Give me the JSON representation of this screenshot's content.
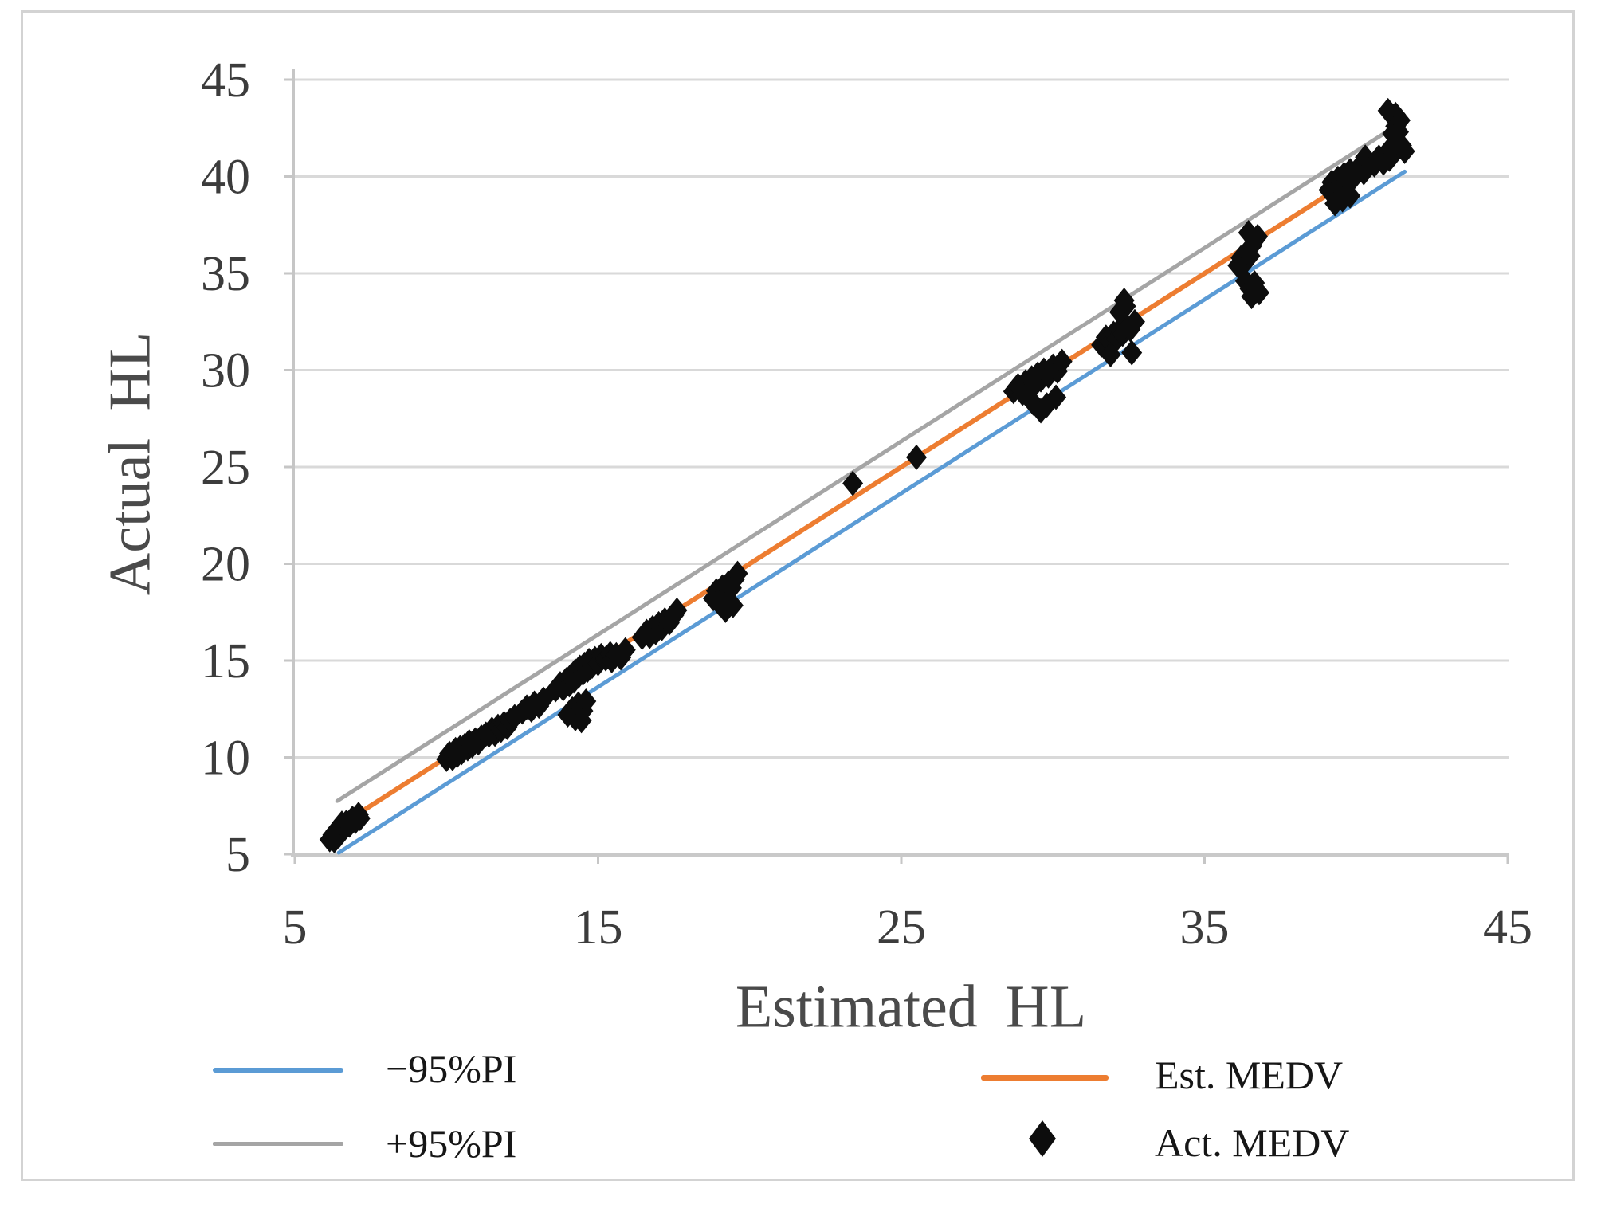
{
  "figure": {
    "background_color": "#ffffff",
    "border_color": "#d3d3d3"
  },
  "chart_data": {
    "type": "scatter",
    "title": "",
    "xlabel": "Estimated HL",
    "ylabel": "Actual HL",
    "xlim": [
      5,
      45
    ],
    "ylim": [
      5,
      45
    ],
    "x_ticks": [
      5,
      15,
      25,
      35,
      45
    ],
    "y_ticks": [
      5,
      10,
      15,
      20,
      25,
      30,
      35,
      40,
      45
    ],
    "grid": "horizontal-only",
    "gridline_color": "#d9d9d9",
    "axis_line_color": "#c6c6c6",
    "tick_label_color": "#3c3c3c",
    "legend_position": "bottom-two-columns",
    "series": [
      {
        "name": "−95%PI",
        "type": "line",
        "color": "#5B9BD5",
        "points": [
          [
            6.45,
            5.08
          ],
          [
            41.6,
            40.25
          ]
        ]
      },
      {
        "name": "+95%PI",
        "type": "line",
        "color": "#A5A5A5",
        "points": [
          [
            6.4,
            7.75
          ],
          [
            41.25,
            42.55
          ]
        ]
      },
      {
        "name": "Est. MEDV",
        "type": "line",
        "color": "#ED7D31",
        "points": [
          [
            6.3,
            6.3
          ],
          [
            41.2,
            41.2
          ]
        ]
      },
      {
        "name": "Act. MEDV",
        "type": "scatter",
        "marker": "diamond",
        "color": "#0d0d0d",
        "points": [
          [
            6.15,
            5.75
          ],
          [
            6.25,
            6.0
          ],
          [
            6.3,
            5.7
          ],
          [
            6.35,
            6.2
          ],
          [
            6.45,
            5.95
          ],
          [
            6.5,
            6.3
          ],
          [
            6.55,
            6.6
          ],
          [
            6.65,
            6.35
          ],
          [
            6.7,
            6.65
          ],
          [
            6.8,
            6.5
          ],
          [
            6.9,
            6.85
          ],
          [
            7.0,
            6.7
          ],
          [
            7.1,
            7.05
          ],
          [
            7.15,
            6.85
          ],
          [
            10.0,
            9.9
          ],
          [
            10.1,
            10.2
          ],
          [
            10.2,
            9.95
          ],
          [
            10.3,
            10.4
          ],
          [
            10.35,
            10.1
          ],
          [
            10.45,
            10.5
          ],
          [
            10.5,
            10.25
          ],
          [
            10.6,
            10.6
          ],
          [
            10.7,
            10.45
          ],
          [
            10.75,
            10.8
          ],
          [
            10.85,
            10.6
          ],
          [
            10.95,
            10.9
          ],
          [
            11.05,
            10.75
          ],
          [
            11.15,
            11.05
          ],
          [
            11.3,
            11.2
          ],
          [
            11.4,
            11.15
          ],
          [
            11.5,
            11.45
          ],
          [
            11.6,
            11.2
          ],
          [
            11.7,
            11.6
          ],
          [
            11.8,
            11.4
          ],
          [
            11.9,
            11.75
          ],
          [
            12.0,
            11.55
          ],
          [
            12.1,
            11.9
          ],
          [
            12.25,
            12.1
          ],
          [
            12.5,
            12.35
          ],
          [
            12.65,
            12.6
          ],
          [
            12.8,
            12.45
          ],
          [
            12.9,
            12.8
          ],
          [
            13.05,
            12.65
          ],
          [
            13.2,
            13.0
          ],
          [
            13.6,
            13.5
          ],
          [
            13.75,
            13.8
          ],
          [
            13.85,
            13.55
          ],
          [
            13.95,
            14.0
          ],
          [
            14.05,
            13.75
          ],
          [
            14.1,
            14.2
          ],
          [
            14.2,
            13.95
          ],
          [
            14.25,
            14.45
          ],
          [
            14.35,
            14.2
          ],
          [
            14.4,
            14.65
          ],
          [
            14.5,
            14.35
          ],
          [
            14.55,
            14.8
          ],
          [
            14.65,
            14.5
          ],
          [
            14.7,
            15.0
          ],
          [
            14.8,
            14.7
          ],
          [
            14.9,
            15.1
          ],
          [
            15.0,
            14.85
          ],
          [
            15.1,
            15.25
          ],
          [
            15.25,
            15.1
          ],
          [
            15.4,
            15.35
          ],
          [
            14.0,
            12.2
          ],
          [
            14.15,
            12.5
          ],
          [
            14.25,
            12.0
          ],
          [
            14.35,
            12.75
          ],
          [
            14.5,
            12.4
          ],
          [
            14.6,
            12.9
          ],
          [
            14.45,
            11.9
          ],
          [
            15.45,
            15.0
          ],
          [
            15.6,
            15.3
          ],
          [
            15.75,
            15.15
          ],
          [
            15.9,
            15.55
          ],
          [
            16.45,
            16.2
          ],
          [
            16.6,
            16.5
          ],
          [
            16.7,
            16.25
          ],
          [
            16.8,
            16.7
          ],
          [
            16.9,
            16.45
          ],
          [
            17.0,
            16.9
          ],
          [
            17.1,
            16.65
          ],
          [
            17.2,
            17.1
          ],
          [
            17.35,
            16.95
          ],
          [
            17.5,
            17.35
          ],
          [
            17.6,
            17.6
          ],
          [
            18.8,
            18.2
          ],
          [
            18.9,
            18.6
          ],
          [
            19.0,
            18.35
          ],
          [
            19.1,
            18.8
          ],
          [
            19.2,
            18.55
          ],
          [
            19.3,
            19.0
          ],
          [
            19.4,
            18.75
          ],
          [
            19.5,
            19.2
          ],
          [
            19.6,
            19.5
          ],
          [
            19.0,
            17.95
          ],
          [
            19.2,
            17.6
          ],
          [
            19.45,
            17.85
          ],
          [
            23.4,
            24.15
          ],
          [
            25.5,
            25.5
          ],
          [
            28.7,
            28.9
          ],
          [
            28.85,
            29.2
          ],
          [
            29.0,
            28.8
          ],
          [
            29.1,
            29.4
          ],
          [
            29.2,
            29.0
          ],
          [
            29.3,
            29.6
          ],
          [
            29.4,
            29.25
          ],
          [
            29.5,
            29.8
          ],
          [
            29.6,
            29.5
          ],
          [
            29.7,
            30.0
          ],
          [
            29.85,
            29.7
          ],
          [
            30.0,
            30.2
          ],
          [
            30.15,
            29.95
          ],
          [
            30.3,
            30.45
          ],
          [
            29.35,
            28.3
          ],
          [
            29.6,
            27.9
          ],
          [
            29.8,
            28.2
          ],
          [
            30.1,
            28.6
          ],
          [
            31.6,
            31.3
          ],
          [
            31.75,
            31.7
          ],
          [
            31.9,
            31.45
          ],
          [
            32.0,
            31.9
          ],
          [
            32.1,
            31.6
          ],
          [
            32.2,
            32.1
          ],
          [
            32.3,
            31.85
          ],
          [
            32.4,
            32.3
          ],
          [
            32.55,
            32.1
          ],
          [
            32.7,
            32.5
          ],
          [
            32.2,
            33.0
          ],
          [
            32.4,
            33.3
          ],
          [
            32.35,
            33.6
          ],
          [
            31.9,
            30.8
          ],
          [
            32.6,
            30.9
          ],
          [
            36.1,
            35.4
          ],
          [
            36.2,
            35.8
          ],
          [
            36.3,
            35.5
          ],
          [
            36.4,
            36.1
          ],
          [
            36.5,
            35.9
          ],
          [
            36.55,
            36.4
          ],
          [
            36.65,
            36.7
          ],
          [
            36.75,
            36.9
          ],
          [
            36.45,
            37.1
          ],
          [
            36.35,
            34.6
          ],
          [
            36.5,
            34.2
          ],
          [
            36.65,
            34.5
          ],
          [
            36.55,
            33.8
          ],
          [
            36.8,
            34.0
          ],
          [
            39.1,
            39.3
          ],
          [
            39.2,
            39.7
          ],
          [
            39.3,
            39.4
          ],
          [
            39.4,
            39.9
          ],
          [
            39.5,
            39.6
          ],
          [
            39.6,
            40.1
          ],
          [
            39.7,
            39.8
          ],
          [
            39.8,
            40.3
          ],
          [
            39.95,
            40.0
          ],
          [
            40.1,
            40.5
          ],
          [
            40.25,
            40.2
          ],
          [
            39.3,
            38.6
          ],
          [
            39.55,
            38.8
          ],
          [
            39.8,
            39.0
          ],
          [
            40.3,
            41.0
          ],
          [
            40.6,
            40.6
          ],
          [
            40.75,
            41.0
          ],
          [
            40.9,
            40.7
          ],
          [
            41.0,
            41.2
          ],
          [
            41.1,
            40.9
          ],
          [
            41.15,
            41.5
          ],
          [
            41.25,
            41.2
          ],
          [
            41.35,
            41.8
          ],
          [
            41.2,
            42.2
          ],
          [
            41.3,
            42.6
          ],
          [
            41.4,
            42.3
          ],
          [
            41.45,
            42.9
          ],
          [
            41.3,
            43.2
          ],
          [
            41.5,
            41.6
          ],
          [
            41.6,
            41.3
          ],
          [
            41.05,
            43.4
          ]
        ]
      }
    ]
  },
  "legend": {
    "items": [
      {
        "label": "−95%PI",
        "swatch": "line",
        "color": "#5B9BD5"
      },
      {
        "label": "+95%PI",
        "swatch": "line",
        "color": "#A5A5A5"
      },
      {
        "label": "Est. MEDV",
        "swatch": "line",
        "color": "#ED7D31"
      },
      {
        "label": "Act. MEDV",
        "swatch": "diamond",
        "color": "#0d0d0d"
      }
    ]
  }
}
